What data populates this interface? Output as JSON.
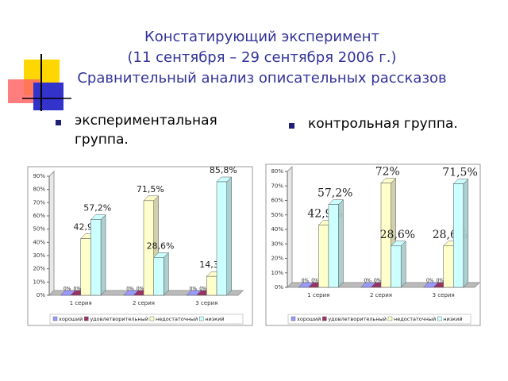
{
  "slide": {
    "title": [
      "Констатирующий эксперимент",
      "(11 сентября – 29 сентября 2006 г.)",
      "Сравнительный анализ описательных рассказов"
    ],
    "bullets": [
      "экспериментальная группа.",
      "контрольная группа."
    ]
  },
  "chart_data": [
    {
      "type": "bar",
      "categories": [
        "1 серия",
        "2 серия",
        "3 серия"
      ],
      "series": [
        {
          "name": "хороший",
          "color": "#9999ff",
          "values": [
            0,
            0,
            0
          ],
          "value_labels": [
            "0%",
            "0%",
            "0%"
          ]
        },
        {
          "name": "удовлетворительный",
          "color": "#993366",
          "values": [
            0,
            0,
            0
          ],
          "value_labels": [
            "0%",
            "0%",
            "0%"
          ]
        },
        {
          "name": "недостаточный",
          "color": "#ffffcc",
          "values": [
            42.9,
            71.5,
            14.3
          ],
          "value_labels": [
            "42,9%",
            "71,5%",
            "14,3%"
          ]
        },
        {
          "name": "низкий",
          "color": "#ccffff",
          "values": [
            57.2,
            28.6,
            85.8
          ],
          "value_labels": [
            "57,2%",
            "28,6%",
            "85,8%"
          ]
        }
      ],
      "ylim": [
        0,
        90
      ],
      "yticks": [
        {
          "value": 0,
          "label": "0%"
        },
        {
          "value": 10,
          "label": "10%"
        },
        {
          "value": 20,
          "label": "20%"
        },
        {
          "value": 30,
          "label": "30%"
        },
        {
          "value": 40,
          "label": "40%"
        },
        {
          "value": 50,
          "label": "50%"
        },
        {
          "value": 60,
          "label": "60%"
        },
        {
          "value": 70,
          "label": "70%"
        },
        {
          "value": 80,
          "label": "80%"
        },
        {
          "value": 90,
          "label": "90%"
        }
      ],
      "legend": "bottom"
    },
    {
      "type": "bar",
      "categories": [
        "1 серия",
        "2 серия",
        "3 серия"
      ],
      "series": [
        {
          "name": "хороший",
          "color": "#9999ff",
          "values": [
            0,
            0,
            0
          ],
          "value_labels": [
            "0%",
            "0%",
            "0%"
          ]
        },
        {
          "name": "удовлетворительный",
          "color": "#993366",
          "values": [
            0,
            0,
            0
          ],
          "value_labels": [
            "0%",
            "0%",
            "0%"
          ]
        },
        {
          "name": "недостаточный",
          "color": "#ffffcc",
          "values": [
            42.9,
            72,
            28.6
          ],
          "value_labels": [
            "42,9%",
            "72%",
            "28,6%"
          ]
        },
        {
          "name": "низкий",
          "color": "#ccffff",
          "values": [
            57.2,
            28.6,
            71.5
          ],
          "value_labels": [
            "57,2%",
            "28,6%",
            "71,5%"
          ]
        }
      ],
      "ylim": [
        0,
        80
      ],
      "yticks": [
        {
          "value": 0,
          "label": "0%"
        },
        {
          "value": 10,
          "label": "10%"
        },
        {
          "value": 20,
          "label": "20%"
        },
        {
          "value": 30,
          "label": "30%"
        },
        {
          "value": 40,
          "label": "40%"
        },
        {
          "value": 50,
          "label": "50%"
        },
        {
          "value": 60,
          "label": "60%"
        },
        {
          "value": 70,
          "label": "70%"
        },
        {
          "value": 80,
          "label": "80%"
        }
      ],
      "legend": "bottom"
    }
  ]
}
